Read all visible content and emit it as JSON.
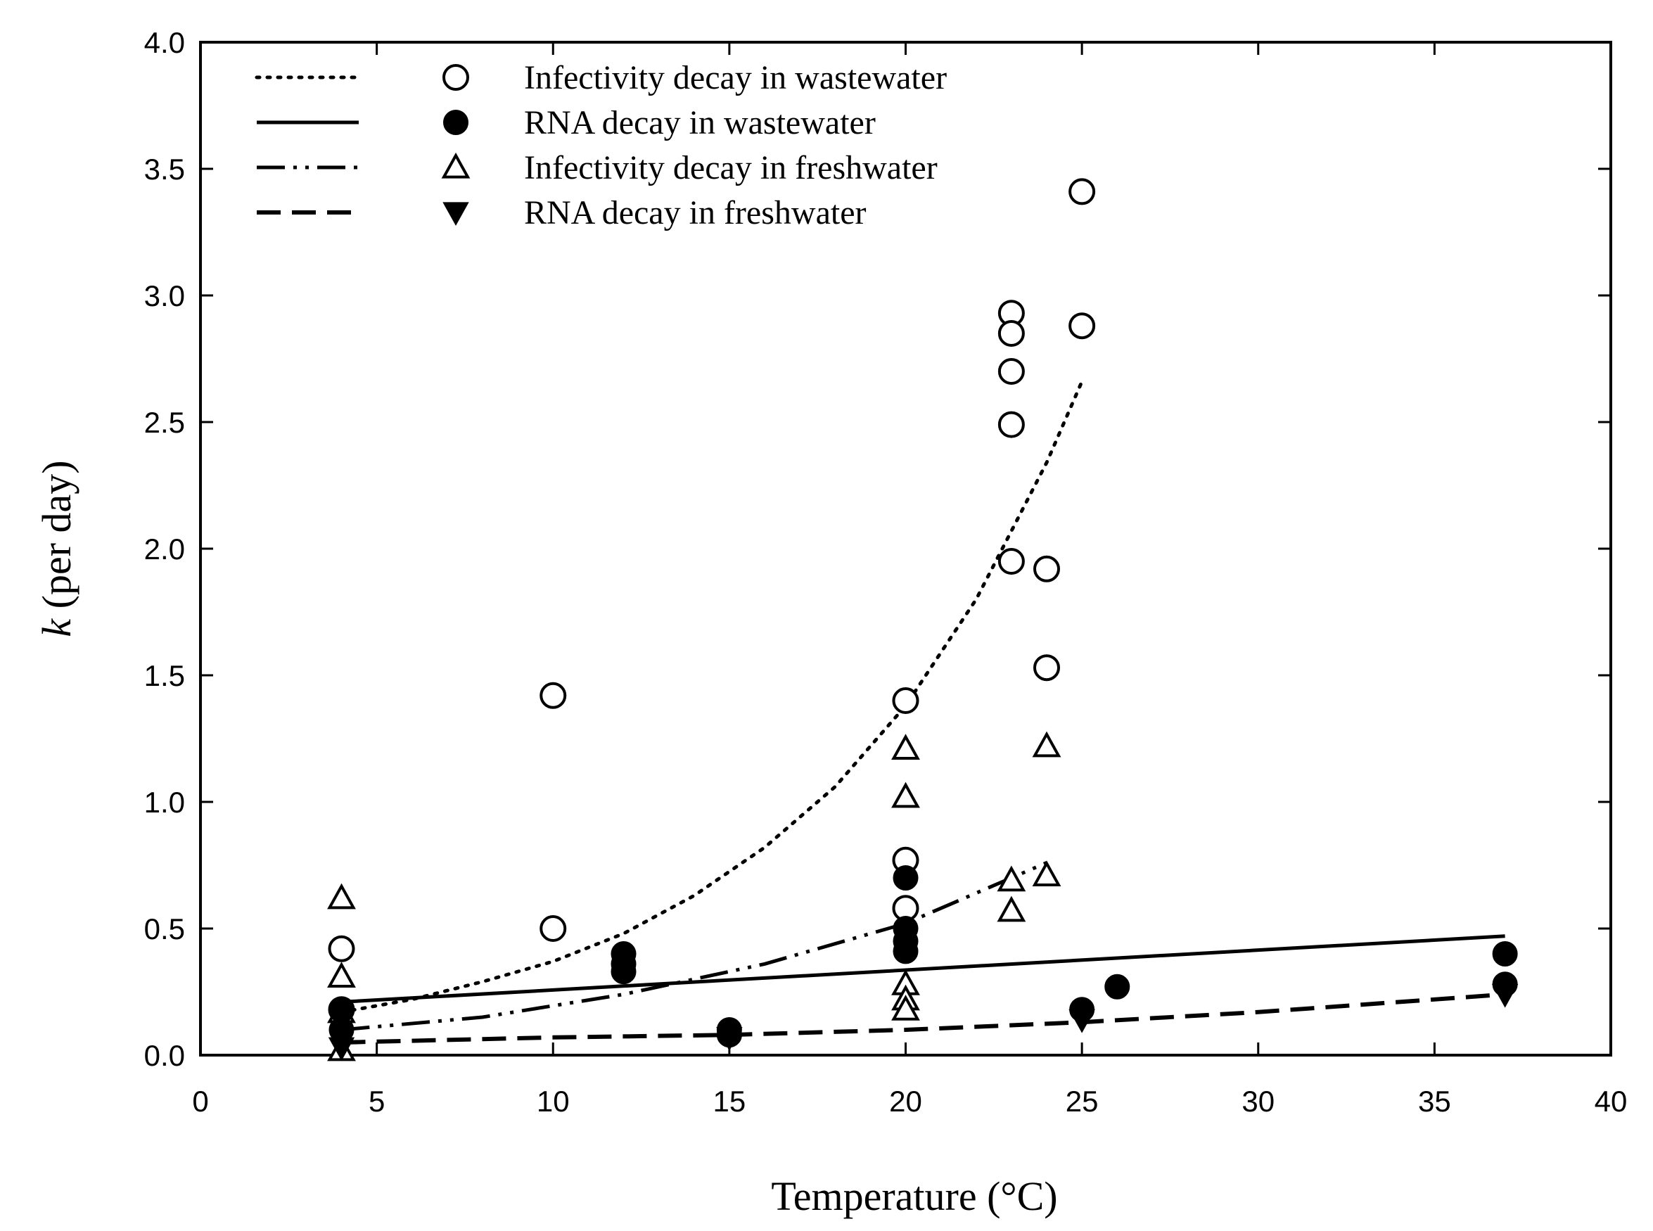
{
  "chart_data": {
    "type": "scatter",
    "xlabel": "Temperature (°C)",
    "ylabel_var": "k",
    "ylabel_rest": " (per day)",
    "xlim": [
      0,
      40
    ],
    "ylim": [
      0,
      4.0
    ],
    "xticks": [
      "0",
      "5",
      "10",
      "15",
      "20",
      "25",
      "30",
      "35",
      "40"
    ],
    "yticks": [
      "0.0",
      "0.5",
      "1.0",
      "1.5",
      "2.0",
      "2.5",
      "3.0",
      "3.5",
      "4.0"
    ],
    "grid": false,
    "legend_position": "top-left",
    "series": [
      {
        "name": "Infectivity decay in wastewater",
        "marker": "open-circle",
        "line_style": "dotted",
        "points": [
          [
            4,
            0.42
          ],
          [
            4,
            0.18
          ],
          [
            10,
            1.42
          ],
          [
            10,
            0.5
          ],
          [
            20,
            1.4
          ],
          [
            20,
            0.77
          ],
          [
            20,
            0.58
          ],
          [
            23,
            2.93
          ],
          [
            23,
            2.85
          ],
          [
            23,
            2.7
          ],
          [
            23,
            2.49
          ],
          [
            23,
            1.95
          ],
          [
            24,
            1.92
          ],
          [
            24,
            1.53
          ],
          [
            25,
            3.41
          ],
          [
            25,
            2.88
          ]
        ],
        "fit": [
          [
            4,
            0.17
          ],
          [
            6,
            0.22
          ],
          [
            8,
            0.29
          ],
          [
            10,
            0.37
          ],
          [
            12,
            0.48
          ],
          [
            14,
            0.63
          ],
          [
            16,
            0.82
          ],
          [
            18,
            1.06
          ],
          [
            20,
            1.38
          ],
          [
            22,
            1.8
          ],
          [
            24,
            2.34
          ],
          [
            25,
            2.66
          ]
        ]
      },
      {
        "name": "RNA decay in wastewater",
        "marker": "filled-circle",
        "line_style": "solid",
        "points": [
          [
            4,
            0.18
          ],
          [
            4,
            0.1
          ],
          [
            12,
            0.4
          ],
          [
            12,
            0.36
          ],
          [
            12,
            0.33
          ],
          [
            15,
            0.1
          ],
          [
            15,
            0.08
          ],
          [
            20,
            0.7
          ],
          [
            20,
            0.5
          ],
          [
            20,
            0.45
          ],
          [
            20,
            0.41
          ],
          [
            25,
            0.18
          ],
          [
            26,
            0.27
          ],
          [
            37,
            0.4
          ],
          [
            37,
            0.28
          ]
        ],
        "fit": [
          [
            4,
            0.21
          ],
          [
            37,
            0.47
          ]
        ]
      },
      {
        "name": "Infectivity decay in freshwater",
        "marker": "open-triangle",
        "line_style": "dash-dot-dot",
        "points": [
          [
            4,
            0.62
          ],
          [
            4,
            0.31
          ],
          [
            4,
            0.17
          ],
          [
            4,
            0.02
          ],
          [
            20,
            1.21
          ],
          [
            20,
            1.02
          ],
          [
            20,
            0.28
          ],
          [
            20,
            0.22
          ],
          [
            20,
            0.18
          ],
          [
            23,
            0.69
          ],
          [
            23,
            0.57
          ],
          [
            24,
            1.22
          ],
          [
            24,
            0.71
          ]
        ],
        "fit": [
          [
            4,
            0.1
          ],
          [
            8,
            0.15
          ],
          [
            12,
            0.24
          ],
          [
            16,
            0.36
          ],
          [
            20,
            0.52
          ],
          [
            24,
            0.76
          ]
        ]
      },
      {
        "name": "RNA decay in freshwater",
        "marker": "filled-triangle-down",
        "line_style": "dashed",
        "points": [
          [
            4,
            0.03
          ],
          [
            15,
            0.07
          ],
          [
            25,
            0.14
          ],
          [
            37,
            0.24
          ]
        ],
        "fit": [
          [
            4,
            0.05
          ],
          [
            10,
            0.07
          ],
          [
            15,
            0.08
          ],
          [
            20,
            0.1
          ],
          [
            25,
            0.13
          ],
          [
            30,
            0.17
          ],
          [
            37,
            0.24
          ]
        ]
      }
    ]
  }
}
